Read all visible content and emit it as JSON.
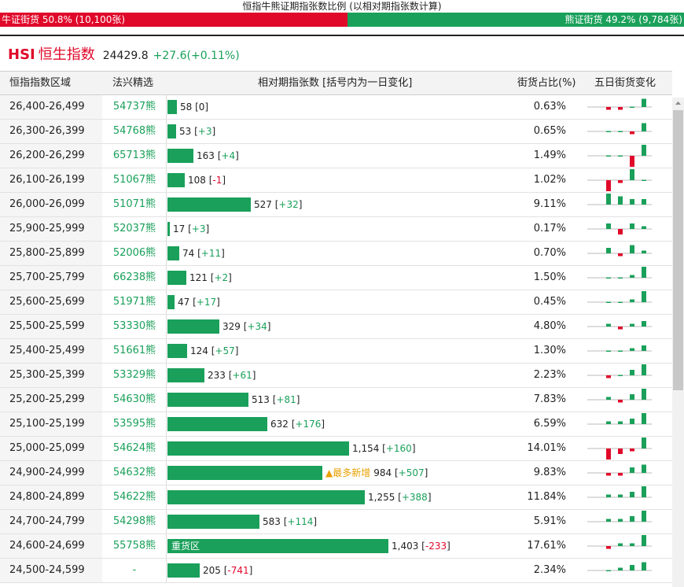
{
  "ratio": {
    "title": "恒指牛熊证期指张数比例 (以相对期指张数计算)",
    "bull_label": "牛证街货 50.8% (10,100张)",
    "bear_label": "熊证街货 49.2% (9,784张)",
    "bull_pct": 50.8,
    "bull_color": "#e0092a",
    "bear_color": "#1aa05a"
  },
  "index": {
    "code": "HSI",
    "name": "恒生指数",
    "value": "24429.8",
    "change": "+27.6(+0.11%)"
  },
  "columns": {
    "range": "恒指指数区域",
    "product": "法兴精选",
    "contracts": "相对期指张数 [括号内为一日变化]",
    "share": "街货占比(%)",
    "trend": "五日街货变化"
  },
  "bar_scale_max": 1403,
  "rows": [
    {
      "range": "26,400-26,499",
      "product": "54737熊",
      "contracts": 58,
      "contracts_label": "58",
      "change": "0",
      "share": "0.63%",
      "tag": "",
      "trend": [
        -1,
        -1,
        0,
        3,
        0
      ]
    },
    {
      "range": "26,300-26,399",
      "product": "54768熊",
      "contracts": 53,
      "contracts_label": "53",
      "change": "+3",
      "share": "0.65%",
      "tag": "",
      "trend": [
        0,
        0,
        -1,
        3,
        1
      ]
    },
    {
      "range": "26,200-26,299",
      "product": "65713熊",
      "contracts": 163,
      "contracts_label": "163",
      "change": "+4",
      "share": "1.49%",
      "tag": "",
      "trend": [
        0,
        0,
        -4,
        4,
        3
      ]
    },
    {
      "range": "26,100-26,199",
      "product": "51067熊",
      "contracts": 108,
      "contracts_label": "108",
      "change": "-1",
      "share": "1.02%",
      "tag": "",
      "trend": [
        -4,
        -1,
        4,
        0,
        0
      ]
    },
    {
      "range": "26,000-26,099",
      "product": "51071熊",
      "contracts": 527,
      "contracts_label": "527",
      "change": "+32",
      "share": "9.11%",
      "tag": "",
      "trend": [
        4,
        3,
        2,
        2,
        2
      ]
    },
    {
      "range": "25,900-25,999",
      "product": "52037熊",
      "contracts": 17,
      "contracts_label": "17",
      "change": "+3",
      "share": "0.17%",
      "tag": "",
      "trend": [
        2,
        -2,
        2,
        1,
        4
      ]
    },
    {
      "range": "25,800-25,899",
      "product": "52006熊",
      "contracts": 74,
      "contracts_label": "74",
      "change": "+11",
      "share": "0.70%",
      "tag": "",
      "trend": [
        2,
        -1,
        3,
        1,
        2
      ]
    },
    {
      "range": "25,700-25,799",
      "product": "66238熊",
      "contracts": 121,
      "contracts_label": "121",
      "change": "+2",
      "share": "1.50%",
      "tag": "",
      "trend": [
        0,
        0,
        1,
        4,
        -1
      ]
    },
    {
      "range": "25,600-25,699",
      "product": "51971熊",
      "contracts": 47,
      "contracts_label": "47",
      "change": "+17",
      "share": "0.45%",
      "tag": "",
      "trend": [
        0,
        0,
        1,
        4,
        2
      ]
    },
    {
      "range": "25,500-25,599",
      "product": "53330熊",
      "contracts": 329,
      "contracts_label": "329",
      "change": "+34",
      "share": "4.80%",
      "tag": "",
      "trend": [
        1,
        -1,
        1,
        2,
        4
      ]
    },
    {
      "range": "25,400-25,499",
      "product": "51661熊",
      "contracts": 124,
      "contracts_label": "124",
      "change": "+57",
      "share": "1.30%",
      "tag": "",
      "trend": [
        0,
        0,
        1,
        2,
        4
      ]
    },
    {
      "range": "25,300-25,399",
      "product": "53329熊",
      "contracts": 233,
      "contracts_label": "233",
      "change": "+61",
      "share": "2.23%",
      "tag": "",
      "trend": [
        -1,
        0,
        2,
        4,
        4
      ]
    },
    {
      "range": "25,200-25,299",
      "product": "54630熊",
      "contracts": 513,
      "contracts_label": "513",
      "change": "+81",
      "share": "7.83%",
      "tag": "",
      "trend": [
        1,
        -1,
        2,
        4,
        3
      ]
    },
    {
      "range": "25,100-25,199",
      "product": "53595熊",
      "contracts": 632,
      "contracts_label": "632",
      "change": "+176",
      "share": "6.59%",
      "tag": "",
      "trend": [
        1,
        1,
        2,
        4,
        3
      ]
    },
    {
      "range": "25,000-25,099",
      "product": "54624熊",
      "contracts": 1154,
      "contracts_label": "1,154",
      "change": "+160",
      "share": "14.01%",
      "tag": "",
      "trend": [
        -4,
        -2,
        -1,
        4,
        3
      ]
    },
    {
      "range": "24,900-24,999",
      "product": "54632熊",
      "contracts": 984,
      "contracts_label": "984",
      "change": "+507",
      "share": "9.83%",
      "tag": "▲最多新增",
      "trend": [
        -1,
        -1,
        2,
        3,
        4
      ]
    },
    {
      "range": "24,800-24,899",
      "product": "54622熊",
      "contracts": 1255,
      "contracts_label": "1,255",
      "change": "+388",
      "share": "11.84%",
      "tag": "",
      "trend": [
        1,
        1,
        2,
        4,
        3
      ]
    },
    {
      "range": "24,700-24,799",
      "product": "54298熊",
      "contracts": 583,
      "contracts_label": "583",
      "change": "+114",
      "share": "5.91%",
      "tag": "",
      "trend": [
        1,
        1,
        2,
        4,
        3
      ]
    },
    {
      "range": "24,600-24,699",
      "product": "55758熊",
      "contracts": 1403,
      "contracts_label": "1,403",
      "change": "-233",
      "share": "17.61%",
      "tag": "重货区",
      "trend": [
        -1,
        1,
        1,
        4,
        -2
      ]
    },
    {
      "range": "24,500-24,599",
      "product": "-",
      "contracts": 205,
      "contracts_label": "205",
      "change": "-741",
      "share": "2.34%",
      "tag": "",
      "trend": [
        0,
        1,
        2,
        3,
        -4
      ]
    }
  ]
}
